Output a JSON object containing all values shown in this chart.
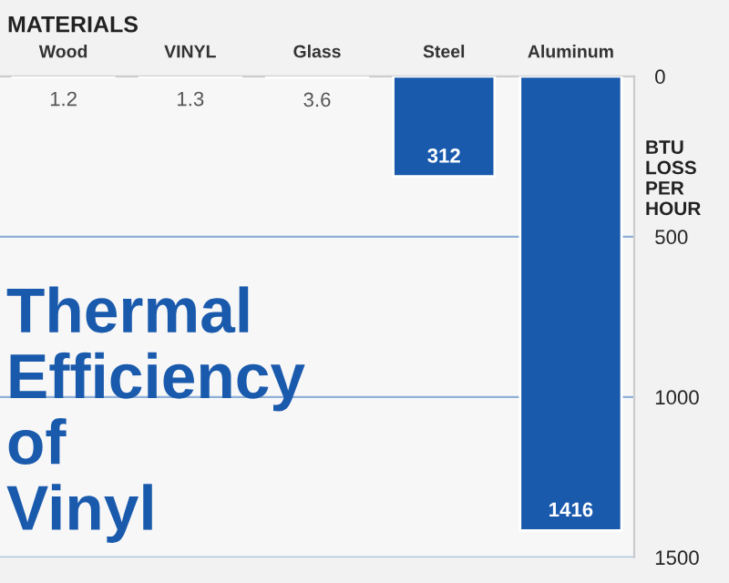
{
  "chart_data": {
    "type": "bar",
    "title": "MATERIALS",
    "categories": [
      "Wood",
      "VINYL",
      "Glass",
      "Steel",
      "Aluminum"
    ],
    "values": [
      1.2,
      1.3,
      3.6,
      312,
      1416
    ],
    "color": "#1a5aad",
    "data_labels": true,
    "ylim": [
      1500,
      0
    ],
    "yticks": [
      0,
      500,
      1000,
      1500
    ],
    "ylabel": "BTU\nLOSS\nPER\nHOUR",
    "grid": "y",
    "annotations": [
      "Thermal\nEfficiency\nof\nVinyl"
    ]
  }
}
